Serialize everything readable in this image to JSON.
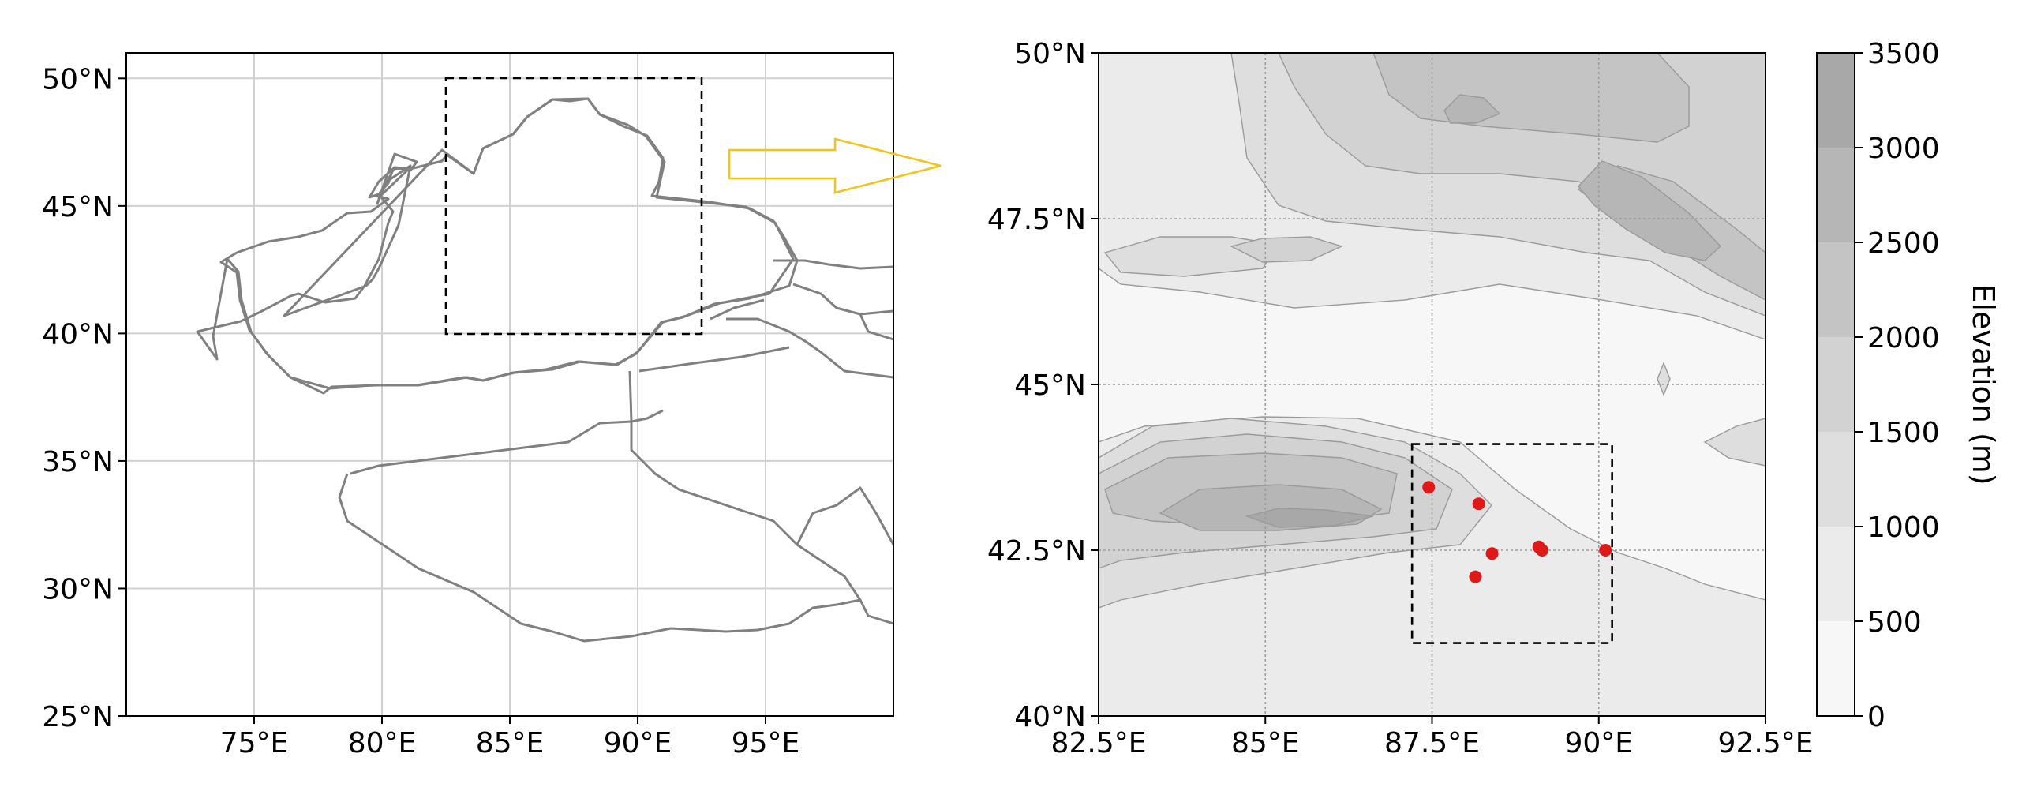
{
  "left_map": {
    "lon_range": [
      70,
      100
    ],
    "lat_range": [
      25,
      51
    ],
    "lon_ticks": [
      75,
      80,
      85,
      90,
      95
    ],
    "lat_ticks": [
      25,
      30,
      35,
      40,
      45,
      50
    ],
    "lon_tick_labels": [
      "75°E",
      "80°E",
      "85°E",
      "90°E",
      "95°E"
    ],
    "lat_tick_labels": [
      "25°N",
      "30°N",
      "35°N",
      "40°N",
      "45°N",
      "50°N"
    ],
    "study_box": {
      "lon": [
        82.5,
        92.5
      ],
      "lat": [
        40,
        50
      ]
    }
  },
  "arrow": {
    "color": "#f2c318"
  },
  "right_map": {
    "lon_range": [
      82.5,
      92.5
    ],
    "lat_range": [
      40,
      50
    ],
    "lon_ticks": [
      82.5,
      85,
      87.5,
      90,
      92.5
    ],
    "lat_ticks": [
      40,
      42.5,
      45,
      47.5,
      50
    ],
    "lon_tick_labels": [
      "82.5°E",
      "85°E",
      "87.5°E",
      "90°E",
      "92.5°E"
    ],
    "lat_tick_labels": [
      "40°N",
      "42.5°N",
      "45°N",
      "47.5°N",
      "50°N"
    ],
    "inner_box": {
      "lon": [
        87.2,
        90.2
      ],
      "lat": [
        41.1,
        44.1
      ]
    },
    "stations": [
      {
        "lon": 87.45,
        "lat": 43.45
      },
      {
        "lon": 88.2,
        "lat": 43.2
      },
      {
        "lon": 88.4,
        "lat": 42.45
      },
      {
        "lon": 88.15,
        "lat": 42.1
      },
      {
        "lon": 89.1,
        "lat": 42.55
      },
      {
        "lon": 89.15,
        "lat": 42.5
      },
      {
        "lon": 90.1,
        "lat": 42.5
      }
    ],
    "station_color": "#e01818"
  },
  "colorbar": {
    "label": "Elevation (m)",
    "ticks": [
      0,
      500,
      1000,
      1500,
      2000,
      2500,
      3000,
      3500
    ],
    "tick_labels": [
      "0",
      "500",
      "1000",
      "1500",
      "2000",
      "2500",
      "3000",
      "3500"
    ],
    "level_colors": [
      "#f7f7f7",
      "#ebebeb",
      "#dedede",
      "#d2d2d2",
      "#c4c4c4",
      "#b6b6b6",
      "#a8a8a8"
    ]
  }
}
